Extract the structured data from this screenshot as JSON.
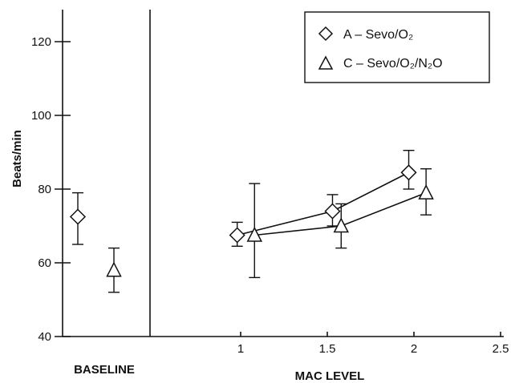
{
  "chart_data": {
    "type": "scatter",
    "title": "",
    "ylabel": "Beats/min",
    "xlabel": "MAC LEVEL",
    "baseline_label": "BASELINE",
    "ylim": [
      40,
      125
    ],
    "xlim": [
      0.5,
      2.5
    ],
    "y_ticks": [
      40,
      60,
      80,
      100,
      120
    ],
    "x_ticks": [
      1,
      1.5,
      2,
      2.5
    ],
    "grid": false,
    "legend_position": "top-right",
    "series": [
      {
        "name": "A – Sevo/O₂",
        "marker": "diamond",
        "baseline": {
          "y": 72.5,
          "err_low": 65,
          "err_high": 79
        },
        "x": [
          0.98,
          1.53,
          1.97
        ],
        "y": [
          67.5,
          74,
          84.5
        ],
        "err_low": [
          64.5,
          70,
          80
        ],
        "err_high": [
          71,
          78.5,
          90.5
        ]
      },
      {
        "name": "C – Sevo/O₂/N₂O",
        "marker": "triangle",
        "baseline": {
          "y": 58,
          "err_low": 52,
          "err_high": 64
        },
        "x": [
          1.08,
          1.58,
          2.07
        ],
        "y": [
          67.5,
          70,
          79
        ],
        "err_low": [
          56,
          64,
          73
        ],
        "err_high": [
          81.5,
          76,
          85.5
        ]
      }
    ]
  }
}
